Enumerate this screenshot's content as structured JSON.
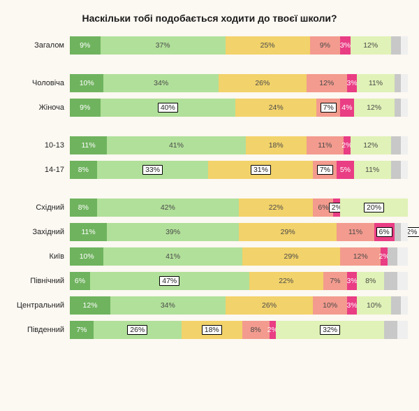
{
  "title": "Наскільки тобі подобається ходити до твоєї школи?",
  "colors": {
    "s1": "#6fb35e",
    "s2": "#b1e09a",
    "s3": "#f2d26a",
    "s4": "#f39b8e",
    "s5": "#e93d84",
    "s6": "#e0f2b7",
    "s7": "#c8c8c8",
    "s8": "#efefef",
    "outlier_border": "#000000",
    "label_light": "#ffffff",
    "label_dark": "#4a4a4a",
    "label_dark_strong": "#222222"
  },
  "groups": [
    {
      "rows": [
        {
          "label": "Загалом",
          "segments": [
            {
              "value": 9,
              "text": "9%",
              "color": "s1",
              "textcolor": "label_light"
            },
            {
              "value": 37,
              "text": "37%",
              "color": "s2",
              "textcolor": "label_dark"
            },
            {
              "value": 25,
              "text": "25%",
              "color": "s3",
              "textcolor": "label_dark"
            },
            {
              "value": 9,
              "text": "9%",
              "color": "s4",
              "textcolor": "label_dark"
            },
            {
              "value": 3,
              "text": "3%",
              "color": "s5",
              "textcolor": "label_light"
            },
            {
              "value": 12,
              "text": "12%",
              "color": "s6",
              "textcolor": "label_dark"
            },
            {
              "value": 3,
              "text": "",
              "color": "s7"
            },
            {
              "value": 2,
              "text": "",
              "color": "s8"
            }
          ]
        }
      ]
    },
    {
      "rows": [
        {
          "label": "Чоловіча",
          "segments": [
            {
              "value": 10,
              "text": "10%",
              "color": "s1",
              "textcolor": "label_light"
            },
            {
              "value": 34,
              "text": "34%",
              "color": "s2",
              "textcolor": "label_dark"
            },
            {
              "value": 26,
              "text": "26%",
              "color": "s3",
              "textcolor": "label_dark"
            },
            {
              "value": 12,
              "text": "12%",
              "color": "s4",
              "textcolor": "label_dark"
            },
            {
              "value": 3,
              "text": "3%",
              "color": "s5",
              "textcolor": "label_light"
            },
            {
              "value": 11,
              "text": "11%",
              "color": "s6",
              "textcolor": "label_dark"
            },
            {
              "value": 2,
              "text": "",
              "color": "s7"
            },
            {
              "value": 2,
              "text": "",
              "color": "s8"
            }
          ]
        },
        {
          "label": "Жіноча",
          "segments": [
            {
              "value": 9,
              "text": "9%",
              "color": "s1",
              "textcolor": "label_light"
            },
            {
              "value": 40,
              "text": "40%",
              "color": "s2",
              "textcolor": "label_dark_strong",
              "outlier": true
            },
            {
              "value": 24,
              "text": "24%",
              "color": "s3",
              "textcolor": "label_dark"
            },
            {
              "value": 7,
              "text": "7%",
              "color": "s4",
              "textcolor": "label_dark_strong",
              "outlier": true
            },
            {
              "value": 4,
              "text": "4%",
              "color": "s5",
              "textcolor": "label_light"
            },
            {
              "value": 12,
              "text": "12%",
              "color": "s6",
              "textcolor": "label_dark"
            },
            {
              "value": 2,
              "text": "",
              "color": "s7"
            },
            {
              "value": 2,
              "text": "",
              "color": "s8"
            }
          ]
        }
      ]
    },
    {
      "rows": [
        {
          "label": "10-13",
          "segments": [
            {
              "value": 11,
              "text": "11%",
              "color": "s1",
              "textcolor": "label_light"
            },
            {
              "value": 41,
              "text": "41%",
              "color": "s2",
              "textcolor": "label_dark"
            },
            {
              "value": 18,
              "text": "18%",
              "color": "s3",
              "textcolor": "label_dark"
            },
            {
              "value": 11,
              "text": "11%",
              "color": "s4",
              "textcolor": "label_dark"
            },
            {
              "value": 2,
              "text": "2%",
              "color": "s5",
              "textcolor": "label_light"
            },
            {
              "value": 12,
              "text": "12%",
              "color": "s6",
              "textcolor": "label_dark"
            },
            {
              "value": 3,
              "text": "",
              "color": "s7"
            },
            {
              "value": 2,
              "text": "",
              "color": "s8"
            }
          ]
        },
        {
          "label": "14-17",
          "segments": [
            {
              "value": 8,
              "text": "8%",
              "color": "s1",
              "textcolor": "label_light"
            },
            {
              "value": 33,
              "text": "33%",
              "color": "s2",
              "textcolor": "label_dark_strong",
              "outlier": true
            },
            {
              "value": 31,
              "text": "31%",
              "color": "s3",
              "textcolor": "label_dark_strong",
              "outlier": true
            },
            {
              "value": 7,
              "text": "7%",
              "color": "s4",
              "textcolor": "label_dark_strong",
              "outlier": true
            },
            {
              "value": 5,
              "text": "5%",
              "color": "s5",
              "textcolor": "label_light"
            },
            {
              "value": 11,
              "text": "11%",
              "color": "s6",
              "textcolor": "label_dark"
            },
            {
              "value": 3,
              "text": "",
              "color": "s7"
            },
            {
              "value": 2,
              "text": "",
              "color": "s8"
            }
          ]
        }
      ]
    },
    {
      "rows": [
        {
          "label": "Східний",
          "segments": [
            {
              "value": 8,
              "text": "8%",
              "color": "s1",
              "textcolor": "label_light"
            },
            {
              "value": 42,
              "text": "42%",
              "color": "s2",
              "textcolor": "label_dark"
            },
            {
              "value": 22,
              "text": "22%",
              "color": "s3",
              "textcolor": "label_dark"
            },
            {
              "value": 6,
              "text": "6%",
              "color": "s4",
              "textcolor": "label_dark"
            },
            {
              "value": 2,
              "text": "2%",
              "color": "s5",
              "textcolor": "label_dark_strong",
              "outlier": true
            },
            {
              "value": 20,
              "text": "20%",
              "color": "s6",
              "textcolor": "label_dark_strong",
              "outlier": true
            }
          ]
        },
        {
          "label": "Західний",
          "segments": [
            {
              "value": 11,
              "text": "11%",
              "color": "s1",
              "textcolor": "label_light"
            },
            {
              "value": 39,
              "text": "39%",
              "color": "s2",
              "textcolor": "label_dark"
            },
            {
              "value": 29,
              "text": "29%",
              "color": "s3",
              "textcolor": "label_dark"
            },
            {
              "value": 11,
              "text": "11%",
              "color": "s4",
              "textcolor": "label_dark"
            },
            {
              "value": 6,
              "text": "6%",
              "color": "s5",
              "textcolor": "label_dark_strong",
              "outlier": true
            },
            {
              "value": 2,
              "text": "2%",
              "color": "s7",
              "textcolor": "label_dark_strong",
              "outlier": true,
              "label_right": true
            },
            {
              "value": 2,
              "text": "",
              "color": "s8"
            }
          ]
        },
        {
          "label": "Київ",
          "segments": [
            {
              "value": 10,
              "text": "10%",
              "color": "s1",
              "textcolor": "label_light"
            },
            {
              "value": 41,
              "text": "41%",
              "color": "s2",
              "textcolor": "label_dark"
            },
            {
              "value": 29,
              "text": "29%",
              "color": "s3",
              "textcolor": "label_dark"
            },
            {
              "value": 12,
              "text": "12%",
              "color": "s4",
              "textcolor": "label_dark"
            },
            {
              "value": 2,
              "text": "2%",
              "color": "s5",
              "textcolor": "label_light"
            },
            {
              "value": 3,
              "text": "",
              "color": "s7"
            },
            {
              "value": 3,
              "text": "",
              "color": "s8"
            }
          ]
        },
        {
          "label": "Північний",
          "segments": [
            {
              "value": 6,
              "text": "6%",
              "color": "s1",
              "textcolor": "label_light"
            },
            {
              "value": 47,
              "text": "47%",
              "color": "s2",
              "textcolor": "label_dark_strong",
              "outlier": true
            },
            {
              "value": 22,
              "text": "22%",
              "color": "s3",
              "textcolor": "label_dark"
            },
            {
              "value": 7,
              "text": "7%",
              "color": "s4",
              "textcolor": "label_dark"
            },
            {
              "value": 3,
              "text": "3%",
              "color": "s5",
              "textcolor": "label_light"
            },
            {
              "value": 8,
              "text": "8%",
              "color": "s6",
              "textcolor": "label_dark"
            },
            {
              "value": 4,
              "text": "",
              "color": "s7"
            },
            {
              "value": 3,
              "text": "",
              "color": "s8"
            }
          ]
        },
        {
          "label": "Центральний",
          "segments": [
            {
              "value": 12,
              "text": "12%",
              "color": "s1",
              "textcolor": "label_light"
            },
            {
              "value": 34,
              "text": "34%",
              "color": "s2",
              "textcolor": "label_dark"
            },
            {
              "value": 26,
              "text": "26%",
              "color": "s3",
              "textcolor": "label_dark"
            },
            {
              "value": 10,
              "text": "10%",
              "color": "s4",
              "textcolor": "label_dark"
            },
            {
              "value": 3,
              "text": "3%",
              "color": "s5",
              "textcolor": "label_light"
            },
            {
              "value": 10,
              "text": "10%",
              "color": "s6",
              "textcolor": "label_dark"
            },
            {
              "value": 3,
              "text": "",
              "color": "s7"
            },
            {
              "value": 2,
              "text": "",
              "color": "s8"
            }
          ]
        },
        {
          "label": "Південний",
          "segments": [
            {
              "value": 7,
              "text": "7%",
              "color": "s1",
              "textcolor": "label_light"
            },
            {
              "value": 26,
              "text": "26%",
              "color": "s2",
              "textcolor": "label_dark_strong",
              "outlier": true
            },
            {
              "value": 18,
              "text": "18%",
              "color": "s3",
              "textcolor": "label_dark_strong",
              "outlier": true
            },
            {
              "value": 8,
              "text": "8%",
              "color": "s4",
              "textcolor": "label_dark"
            },
            {
              "value": 2,
              "text": "2%",
              "color": "s5",
              "textcolor": "label_light"
            },
            {
              "value": 32,
              "text": "32%",
              "color": "s6",
              "textcolor": "label_dark_strong",
              "outlier": true
            },
            {
              "value": 4,
              "text": "",
              "color": "s7"
            },
            {
              "value": 3,
              "text": "",
              "color": "s8"
            }
          ]
        }
      ]
    }
  ]
}
